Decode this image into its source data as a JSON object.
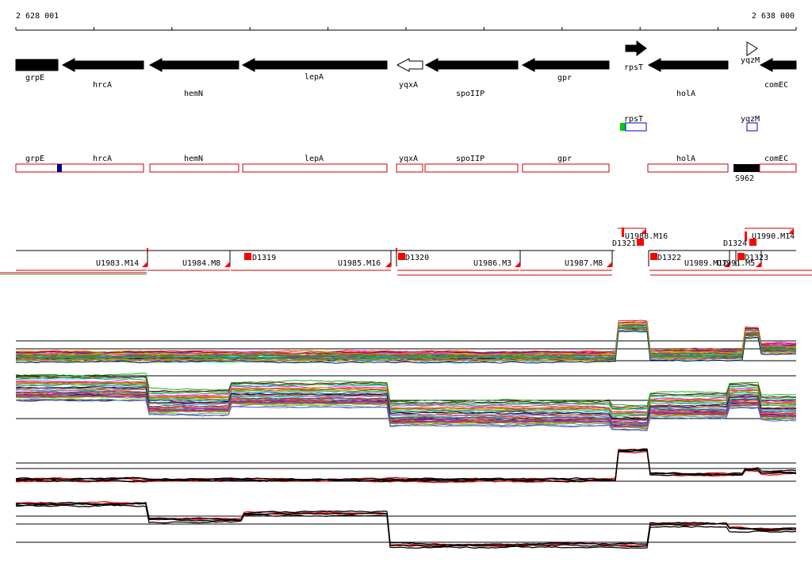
{
  "ruler": {
    "start_label": "2 628 001",
    "end_label": "2 638 000"
  },
  "genes": [
    {
      "name": "grpE",
      "strand": "+",
      "row": 0,
      "fill": "solid"
    },
    {
      "name": "hrcA",
      "strand": "-",
      "row": 1,
      "fill": "solid"
    },
    {
      "name": "hemN",
      "strand": "-",
      "row": 2,
      "fill": "solid"
    },
    {
      "name": "lepA",
      "strand": "-",
      "row": 1,
      "fill": "solid"
    },
    {
      "name": "yqxA",
      "strand": "-",
      "row": 0,
      "fill": "outline"
    },
    {
      "name": "spoIIP",
      "strand": "-",
      "row": 2,
      "fill": "solid"
    },
    {
      "name": "gpr",
      "strand": "-",
      "row": 1,
      "fill": "solid"
    },
    {
      "name": "rpsT",
      "strand": "+",
      "row": 0,
      "fill": "solid"
    },
    {
      "name": "holA",
      "strand": "-",
      "row": 2,
      "fill": "solid"
    },
    {
      "name": "yqzM",
      "strand": "+",
      "row": 0,
      "fill": "outline"
    },
    {
      "name": "comEC",
      "strand": "-",
      "row": 1,
      "fill": "solid"
    }
  ],
  "small_features": [
    {
      "name": "rpsT"
    },
    {
      "name": "yqzM"
    }
  ],
  "feature_boxes": [
    {
      "name": "grpE"
    },
    {
      "name": "hrcA"
    },
    {
      "name": "hemN"
    },
    {
      "name": "lepA"
    },
    {
      "name": "yqxA"
    },
    {
      "name": "spoIIP"
    },
    {
      "name": "gpr"
    },
    {
      "name": "holA"
    },
    {
      "name": "comEC"
    }
  ],
  "sRNA_label": "S962",
  "segment_labels": [
    "U1983.M14",
    "U1984.M8",
    "D1319",
    "U1985.M16",
    "D1320",
    "U1986.M3",
    "U1987.M8",
    "U1988.M16",
    "D1321",
    "D1322",
    "U1989.M17",
    "U1991.M5",
    "D1324",
    "U1990.M14",
    "D1323"
  ],
  "colors": {
    "gene": "#000000",
    "feature_box": "#cc0000",
    "marker": "#ff0000",
    "small_feature": "#0000cc",
    "green_tag": "#00cc00",
    "navy_tag": "#000080",
    "profile_highlight": "#e01010"
  }
}
